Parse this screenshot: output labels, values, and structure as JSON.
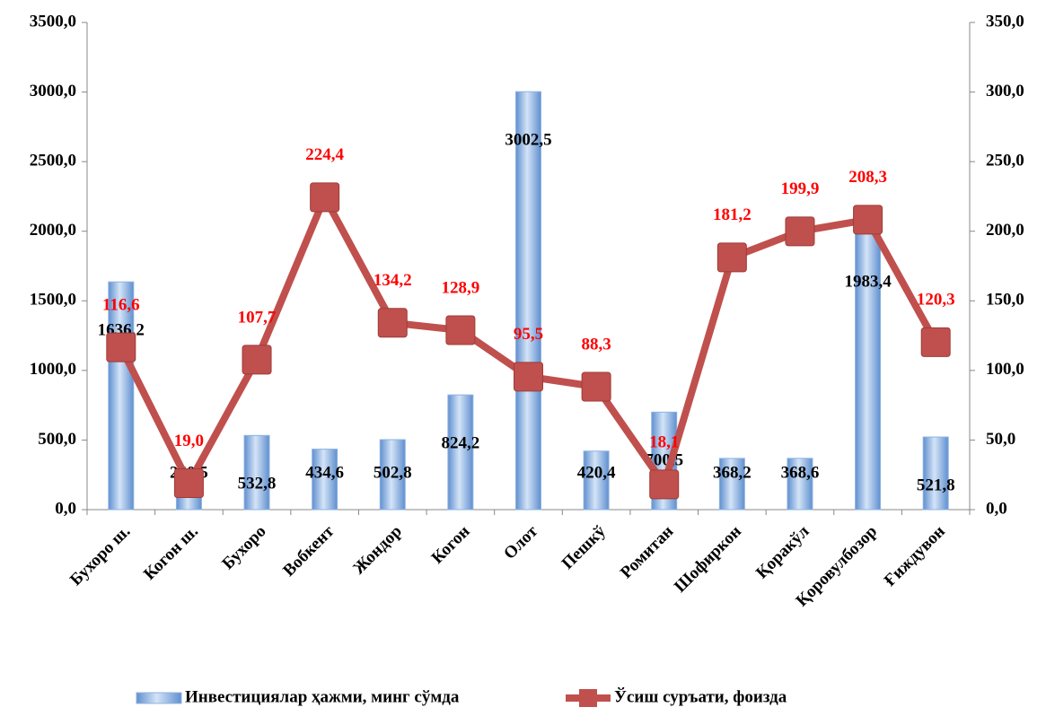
{
  "chart_data": {
    "type": "bar",
    "categories": [
      "Бухоро ш.",
      "Когон ш.",
      "Бухоро",
      "Вобкент",
      "Жондор",
      "Когон",
      "Олот",
      "Пешкў",
      "Ромитан",
      "Шофиркон",
      "Қоракўл",
      "Қоровулбозор",
      "Ғиждувон"
    ],
    "series": [
      {
        "name": "Инвестициялар ҳажми, минг сўмда",
        "color": "#8db3e2",
        "axis": "y",
        "values": [
          1636.2,
          260.5,
          532.8,
          434.6,
          502.8,
          824.2,
          3002.5,
          420.4,
          700.5,
          368.2,
          368.6,
          1983.4,
          521.8
        ],
        "value_labels": [
          "1636,2",
          "260,5",
          "532,8",
          "434,6",
          "502,8",
          "824,2",
          "3002,5",
          "420,4",
          "700,5",
          "368,2",
          "368,6",
          "1983,4",
          "521,8"
        ]
      },
      {
        "name": "Ўсиш суръати, фоизда",
        "color": "#c0504d",
        "axis": "y2",
        "type": "line",
        "values": [
          116.6,
          19.0,
          107.7,
          224.4,
          134.2,
          128.9,
          95.5,
          88.3,
          18.1,
          181.2,
          199.9,
          208.3,
          120.3
        ],
        "value_labels": [
          "116,6",
          "19,0",
          "107,7",
          "224,4",
          "134,2",
          "128,9",
          "95,5",
          "88,3",
          "18,1",
          "181,2",
          "199,9",
          "208,3",
          "120,3"
        ]
      }
    ],
    "ylim": [
      0,
      3500
    ],
    "yticks": [
      {
        "value": 0,
        "label": "0,0"
      },
      {
        "value": 500,
        "label": "500,0"
      },
      {
        "value": 1000,
        "label": "1000,0"
      },
      {
        "value": 1500,
        "label": "1500,0"
      },
      {
        "value": 2000,
        "label": "2000,0"
      },
      {
        "value": 2500,
        "label": "2500,0"
      },
      {
        "value": 3000,
        "label": "3000,0"
      },
      {
        "value": 3500,
        "label": "3500,0"
      }
    ],
    "y2lim": [
      0,
      350
    ],
    "y2ticks": [
      {
        "value": 0,
        "label": "0,0"
      },
      {
        "value": 50,
        "label": "50,0"
      },
      {
        "value": 100,
        "label": "100,0"
      },
      {
        "value": 150,
        "label": "150,0"
      },
      {
        "value": 200,
        "label": "200,0"
      },
      {
        "value": 250,
        "label": "250,0"
      },
      {
        "value": 300,
        "label": "300,0"
      },
      {
        "value": 350,
        "label": "350,0"
      }
    ],
    "legend": "bottom"
  }
}
